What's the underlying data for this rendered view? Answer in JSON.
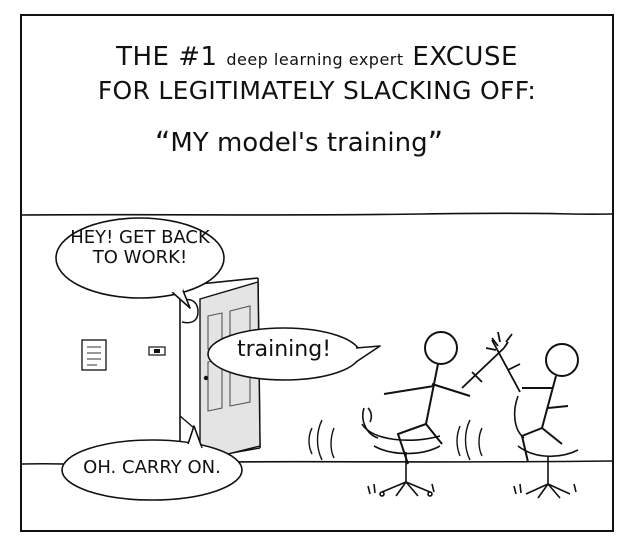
{
  "comic": {
    "title": {
      "line1_big_a": "THE #1",
      "line1_small": "deep learning expert",
      "line1_big_b": "EXCUSE",
      "line2": "FOR LEGITIMATELY SLACKING OFF:"
    },
    "quote": {
      "open": "“",
      "text": "MY model's training",
      "close": "”"
    },
    "bubbles": {
      "boss_line1": "HEY! GET BACK",
      "boss_line2": "TO WORK!",
      "worker": "training!",
      "boss_reply": "OH. CARRY ON."
    }
  }
}
